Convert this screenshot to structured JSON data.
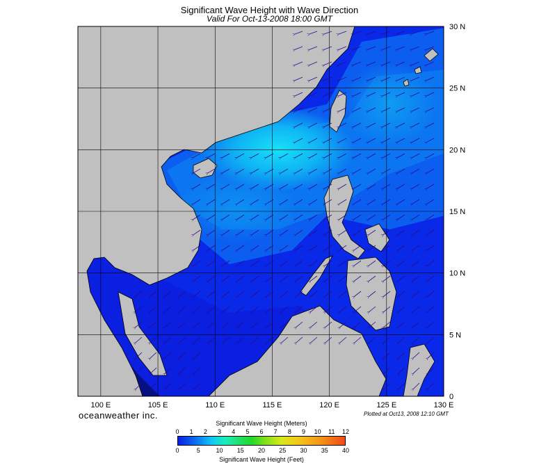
{
  "header": {
    "title": "Significant Wave Height with Wave Direction",
    "valid": "Valid For Oct-13-2008 18:00 GMT"
  },
  "map": {
    "lon_range": [
      98,
      130
    ],
    "lat_range": [
      0,
      30
    ],
    "lon_labels": [
      "100 E",
      "105 E",
      "110 E",
      "115 E",
      "120 E",
      "125 E",
      "130 E"
    ],
    "lon_values": [
      100,
      105,
      110,
      115,
      120,
      125,
      130
    ],
    "lat_labels": [
      "30 N",
      "25 N",
      "20 N",
      "15 N",
      "10 N",
      "5 N",
      "0"
    ],
    "lat_values": [
      30,
      25,
      20,
      15,
      10,
      5,
      0
    ],
    "land_color": "#c0c0c0",
    "sea_colors": {
      "deep": "#0a1fe6",
      "mid": "#0b5ff0",
      "high": "#10b8f5",
      "peak": "#19e3f8"
    },
    "arrow_color": "#2a0a8a"
  },
  "footer": {
    "brand": "oceanweather inc.",
    "plotted": "Plotted at Oct13, 2008 12:10 GMT"
  },
  "colorbar": {
    "meters_title": "Significant Wave Height (Meters)",
    "feet_title": "Significant Wave Height (Feet)",
    "meter_ticks": [
      "0",
      "1",
      "2",
      "3",
      "4",
      "5",
      "6",
      "7",
      "8",
      "9",
      "10",
      "11",
      "12"
    ],
    "feet_ticks": [
      "0",
      "5",
      "10",
      "15",
      "20",
      "25",
      "30",
      "35",
      "40"
    ]
  }
}
